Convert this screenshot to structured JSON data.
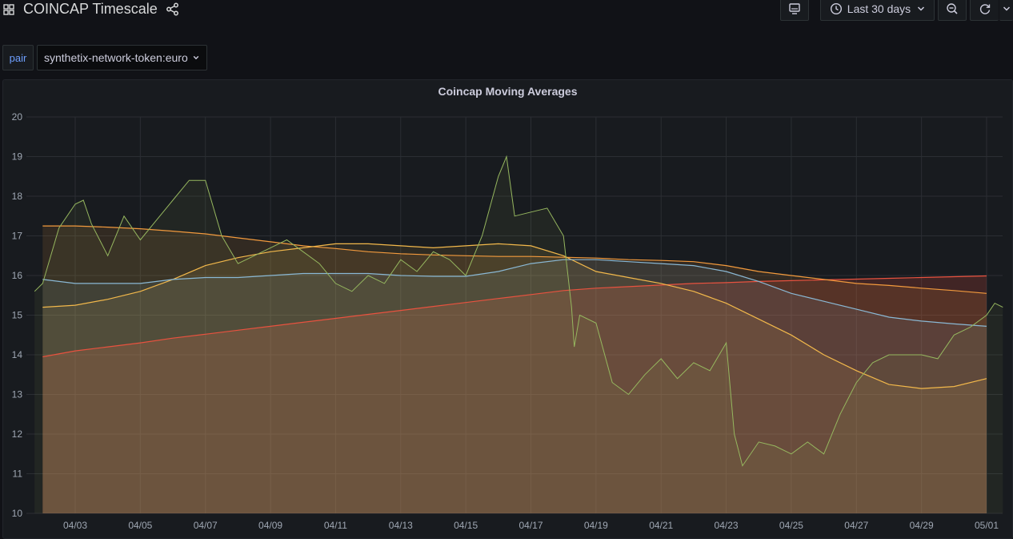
{
  "header": {
    "title": "COINCAP Timescale",
    "time_range_label": "Last 30 days"
  },
  "variables": {
    "label": "pair",
    "value": "synthetix-network-token:euro"
  },
  "panel": {
    "title": "Coincap Moving Averages"
  },
  "colors": {
    "price": "#96b75f",
    "ma_a": "#8ab8d4",
    "ma_b": "#f2b84b",
    "ma_c": "#f29a3d",
    "ma_d": "#e8523f"
  },
  "chart_data": {
    "type": "line",
    "title": "Coincap Moving Averages",
    "xlabel": "",
    "ylabel": "",
    "ylim": [
      10,
      20
    ],
    "x_range": [
      "04/02",
      "05/01"
    ],
    "yticks": [
      "10",
      "11",
      "12",
      "13",
      "14",
      "15",
      "16",
      "17",
      "18",
      "19",
      "20"
    ],
    "xticks": [
      "04/03",
      "04/05",
      "04/07",
      "04/09",
      "04/11",
      "04/13",
      "04/15",
      "04/17",
      "04/19",
      "04/21",
      "04/23",
      "04/25",
      "04/27",
      "04/29",
      "05/01"
    ],
    "grid": true,
    "legend": "none",
    "series": [
      {
        "x": [
          "04/01 18:00",
          "04/02 00:00",
          "04/02 12:00",
          "04/03 00:00",
          "04/03 06:00",
          "04/03 12:00",
          "04/04 00:00",
          "04/04 12:00",
          "04/05 00:00",
          "04/05 12:00",
          "04/06 00:00",
          "04/06 12:00",
          "04/07 00:00",
          "04/07 12:00",
          "04/08 00:00",
          "04/08 12:00",
          "04/09 00:00",
          "04/09 12:00",
          "04/10 00:00",
          "04/10 12:00",
          "04/11 00:00",
          "04/11 12:00",
          "04/12 00:00",
          "04/12 12:00",
          "04/13 00:00",
          "04/13 12:00",
          "04/14 00:00",
          "04/14 12:00",
          "04/15 00:00",
          "04/15 12:00",
          "04/16 00:00",
          "04/16 06:00",
          "04/16 12:00",
          "04/17 00:00",
          "04/17 12:00",
          "04/18 00:00",
          "04/18 06:00",
          "04/18 08:00",
          "04/18 12:00",
          "04/19 00:00",
          "04/19 12:00",
          "04/20 00:00",
          "04/20 12:00",
          "04/21 00:00",
          "04/21 12:00",
          "04/22 00:00",
          "04/22 12:00",
          "04/23 00:00",
          "04/23 06:00",
          "04/23 12:00",
          "04/24 00:00",
          "04/24 12:00",
          "04/25 00:00",
          "04/25 12:00",
          "04/26 00:00",
          "04/26 12:00",
          "04/27 00:00",
          "04/27 12:00",
          "04/28 00:00",
          "04/28 12:00",
          "04/29 00:00",
          "04/29 12:00",
          "04/30 00:00",
          "04/30 12:00",
          "05/01 00:00",
          "05/01 06:00",
          "05/01 12:00"
        ],
        "values": [
          15.6,
          15.8,
          17.2,
          17.8,
          17.9,
          17.3,
          16.5,
          17.5,
          16.9,
          17.4,
          17.9,
          18.4,
          18.4,
          17.0,
          16.3,
          16.5,
          16.7,
          16.9,
          16.6,
          16.3,
          15.8,
          15.6,
          16.0,
          15.8,
          16.4,
          16.1,
          16.6,
          16.4,
          16.0,
          17.0,
          18.5,
          19.0,
          17.5,
          17.6,
          17.7,
          17.0,
          15.2,
          14.2,
          15.0,
          14.8,
          13.3,
          13.0,
          13.5,
          13.9,
          13.4,
          13.8,
          13.6,
          14.3,
          12.0,
          11.2,
          11.8,
          11.7,
          11.5,
          11.8,
          11.5,
          12.5,
          13.3,
          13.8,
          14.0,
          14.0,
          14.0,
          13.9,
          14.5,
          14.7,
          15.0,
          15.3,
          15.2
        ]
      },
      {
        "x": [
          "04/02",
          "04/03",
          "04/04",
          "04/05",
          "04/06",
          "04/07",
          "04/08",
          "04/09",
          "04/10",
          "04/11",
          "04/12",
          "04/13",
          "04/14",
          "04/15",
          "04/16",
          "04/17",
          "04/18",
          "04/19",
          "04/20",
          "04/21",
          "04/22",
          "04/23",
          "04/24",
          "04/25",
          "04/26",
          "04/27",
          "04/28",
          "04/29",
          "04/30",
          "05/01"
        ],
        "values": [
          15.9,
          15.8,
          15.8,
          15.8,
          15.9,
          15.95,
          15.95,
          16.0,
          16.05,
          16.05,
          16.05,
          16.0,
          15.98,
          15.98,
          16.1,
          16.3,
          16.4,
          16.4,
          16.35,
          16.3,
          16.25,
          16.1,
          15.85,
          15.55,
          15.35,
          15.15,
          14.95,
          14.85,
          14.78,
          14.72
        ]
      },
      {
        "x": [
          "04/02",
          "04/03",
          "04/04",
          "04/05",
          "04/06",
          "04/07",
          "04/08",
          "04/09",
          "04/10",
          "04/11",
          "04/12",
          "04/13",
          "04/14",
          "04/15",
          "04/16",
          "04/17",
          "04/18",
          "04/19",
          "04/20",
          "04/21",
          "04/22",
          "04/23",
          "04/24",
          "04/25",
          "04/26",
          "04/27",
          "04/28",
          "04/29",
          "04/30",
          "05/01"
        ],
        "values": [
          15.2,
          15.25,
          15.4,
          15.6,
          15.9,
          16.25,
          16.45,
          16.6,
          16.7,
          16.8,
          16.8,
          16.75,
          16.7,
          16.75,
          16.8,
          16.75,
          16.5,
          16.1,
          15.95,
          15.8,
          15.6,
          15.3,
          14.9,
          14.5,
          14.0,
          13.6,
          13.25,
          13.15,
          13.2,
          13.4
        ]
      },
      {
        "x": [
          "04/02",
          "04/03",
          "04/04",
          "04/05",
          "04/06",
          "04/07",
          "04/08",
          "04/09",
          "04/10",
          "04/11",
          "04/12",
          "04/13",
          "04/14",
          "04/15",
          "04/16",
          "04/17",
          "04/18",
          "04/19",
          "04/20",
          "04/21",
          "04/22",
          "04/23",
          "04/24",
          "04/25",
          "04/26",
          "04/27",
          "04/28",
          "04/29",
          "04/30",
          "05/01"
        ],
        "values": [
          17.25,
          17.25,
          17.22,
          17.18,
          17.12,
          17.05,
          16.95,
          16.85,
          16.75,
          16.68,
          16.6,
          16.55,
          16.52,
          16.5,
          16.48,
          16.48,
          16.46,
          16.44,
          16.4,
          16.38,
          16.35,
          16.25,
          16.1,
          16.0,
          15.9,
          15.8,
          15.75,
          15.68,
          15.62,
          15.55
        ]
      },
      {
        "x": [
          "04/02",
          "04/03",
          "04/04",
          "04/05",
          "04/06",
          "04/07",
          "04/08",
          "04/09",
          "04/10",
          "04/11",
          "04/12",
          "04/13",
          "04/14",
          "04/15",
          "04/16",
          "04/17",
          "04/18",
          "04/19",
          "04/20",
          "04/21",
          "04/22",
          "04/23",
          "04/24",
          "04/25",
          "04/26",
          "04/27",
          "04/28",
          "04/29",
          "04/30",
          "05/01"
        ],
        "values": [
          13.95,
          14.1,
          14.2,
          14.3,
          14.42,
          14.52,
          14.62,
          14.72,
          14.82,
          14.92,
          15.02,
          15.12,
          15.22,
          15.32,
          15.42,
          15.52,
          15.62,
          15.68,
          15.72,
          15.76,
          15.8,
          15.82,
          15.85,
          15.87,
          15.89,
          15.91,
          15.93,
          15.95,
          15.97,
          15.99
        ]
      }
    ]
  }
}
